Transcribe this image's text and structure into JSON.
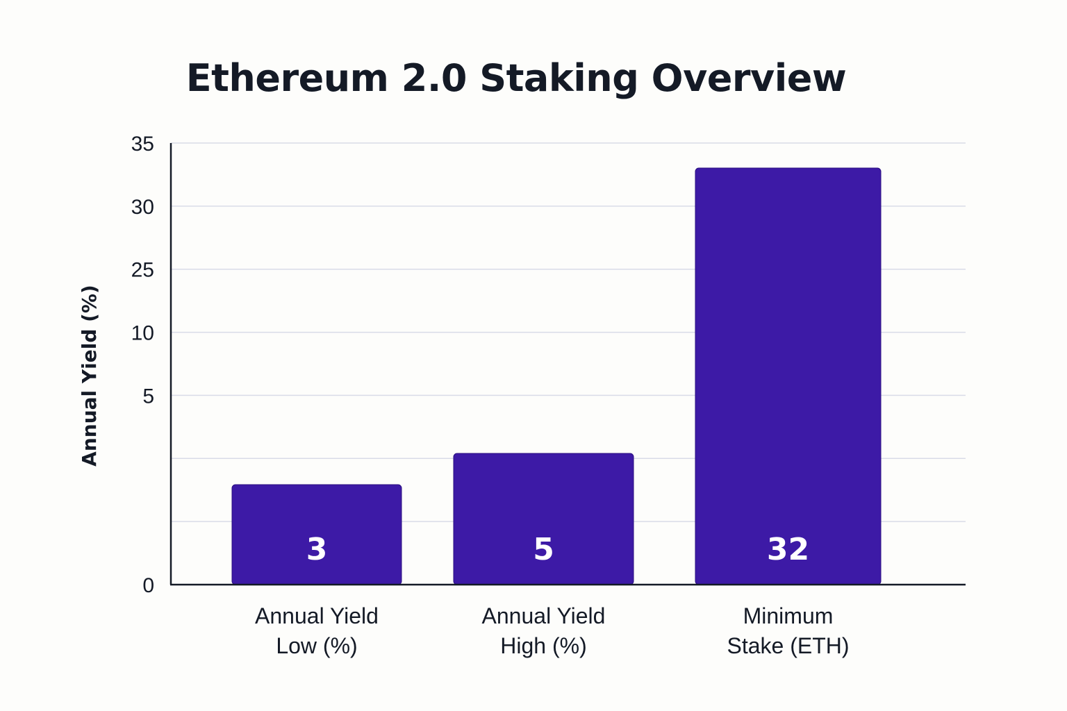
{
  "chart_data": {
    "type": "bar",
    "title": "Ethereum 2.0 Staking Overview",
    "xlabel": "",
    "ylabel": "Annual Yield (%)",
    "categories": [
      [
        "Annual Yield",
        "Low (%)"
      ],
      [
        "Annual Yield",
        "High (%)"
      ],
      [
        "Minimum",
        "Stake (ETH)"
      ]
    ],
    "values": [
      3,
      5,
      32
    ],
    "y_ticks": [
      {
        "label": "35",
        "value": 35
      },
      {
        "label": "30",
        "value": 30
      },
      {
        "label": "25",
        "value": 25
      },
      {
        "label": "10",
        "value": 10
      },
      {
        "label": "5",
        "value": 5
      },
      {
        "label": "",
        "value": null
      },
      {
        "label": "",
        "value": null
      },
      {
        "label": "0",
        "value": 0
      }
    ],
    "grid": true,
    "legend": "none",
    "colors": {
      "bar": "#3d1aa6",
      "bar_stroke": "#2a0f80",
      "grid": "#d9dbe8",
      "axis": "#141a26",
      "text": "#141a26",
      "value_label": "#ffffff"
    }
  }
}
